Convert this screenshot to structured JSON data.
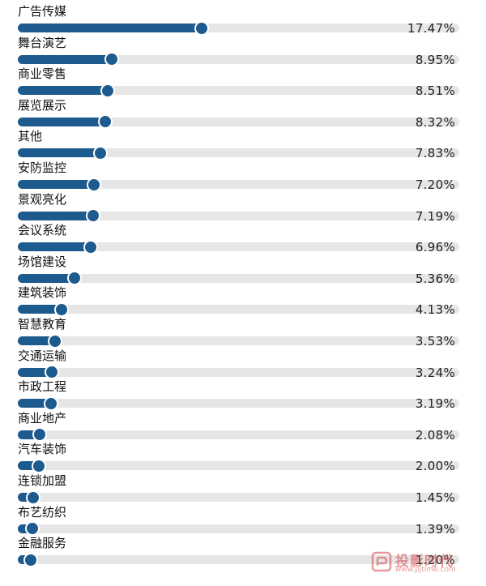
{
  "chart_data": {
    "type": "bar",
    "orientation": "horizontal",
    "categories": [
      "广告传媒",
      "舞台演艺",
      "商业零售",
      "展览展示",
      "其他",
      "安防监控",
      "景观亮化",
      "会议系统",
      "场馆建设",
      "建筑装饰",
      "智慧教育",
      "交通运输",
      "市政工程",
      "商业地产",
      "汽车装饰",
      "连锁加盟",
      "布艺纺织",
      "金融服务"
    ],
    "values": [
      17.47,
      8.95,
      8.51,
      8.32,
      7.83,
      7.2,
      7.19,
      6.96,
      5.36,
      4.13,
      3.53,
      3.24,
      3.19,
      2.08,
      2.0,
      1.45,
      1.39,
      1.2
    ],
    "value_labels": [
      "17.47%",
      "8.95%",
      "8.51%",
      "8.32%",
      "7.83%",
      "7.20%",
      "7.19%",
      "6.96%",
      "5.36%",
      "4.13%",
      "3.53%",
      "3.24%",
      "3.19%",
      "2.08%",
      "2.00%",
      "1.45%",
      "1.39%",
      "1.20%"
    ],
    "grid": false,
    "legend": "none",
    "bar_color": "#1d5a8e",
    "track_color": "#e6e6e6"
  },
  "watermark": {
    "text": "投影时代",
    "subtext": "www.pjtime.com"
  }
}
